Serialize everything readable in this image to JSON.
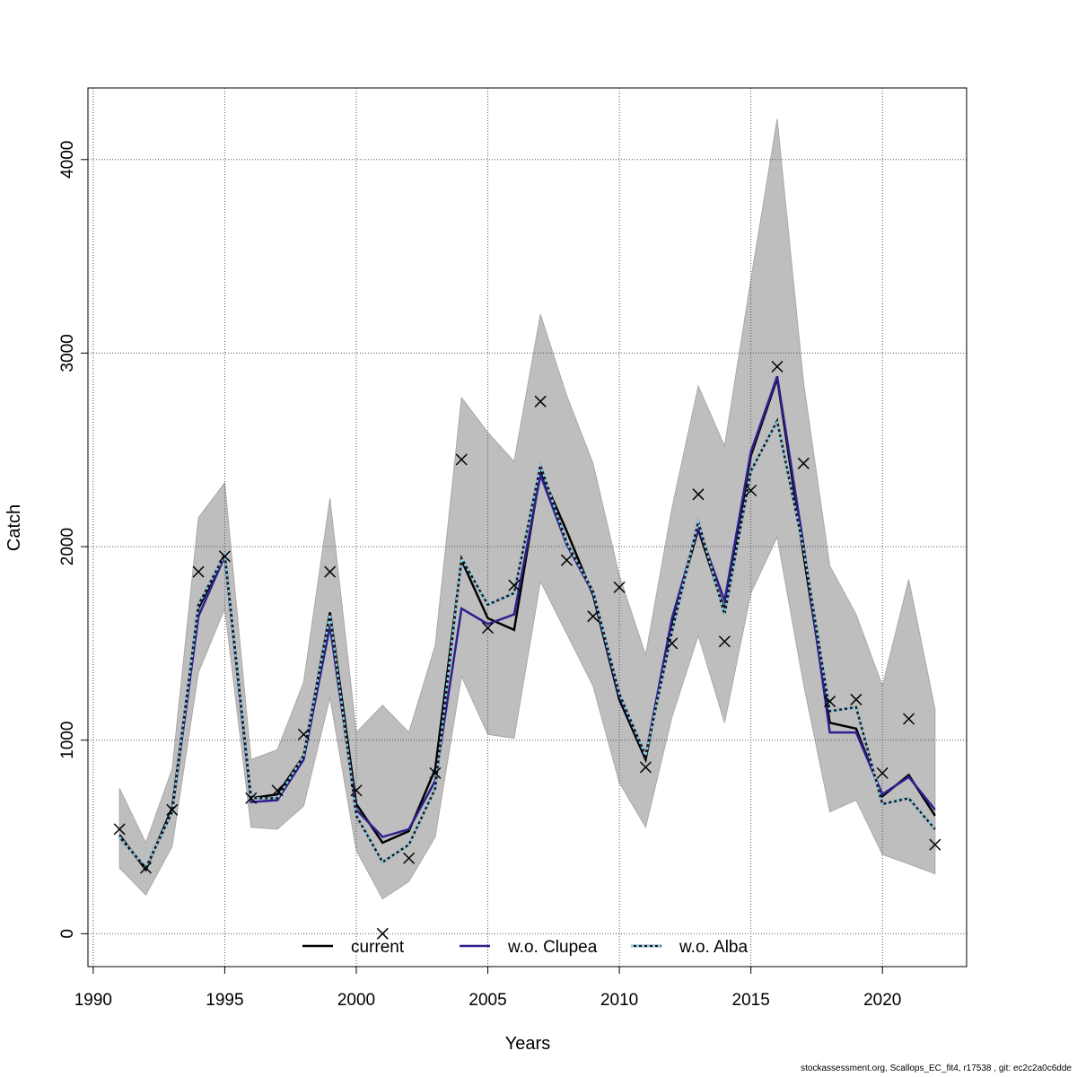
{
  "chart_data": {
    "type": "line",
    "xlabel": "Years",
    "ylabel": "Catch",
    "xlim": [
      1989.8,
      2023.2
    ],
    "ylim": [
      -170,
      4370
    ],
    "x_ticks": [
      1990,
      1995,
      2000,
      2005,
      2010,
      2015,
      2020
    ],
    "y_ticks": [
      0,
      1000,
      2000,
      3000,
      4000
    ],
    "grid": true,
    "legend_position": "bottom",
    "years": [
      1991,
      1992,
      1993,
      1994,
      1995,
      1996,
      1997,
      1998,
      1999,
      2000,
      2001,
      2002,
      2003,
      2004,
      2005,
      2006,
      2007,
      2008,
      2009,
      2010,
      2011,
      2012,
      2013,
      2014,
      2015,
      2016,
      2017,
      2018,
      2019,
      2020,
      2021,
      2022
    ],
    "band": {
      "upper": [
        750,
        470,
        850,
        2150,
        2330,
        900,
        950,
        1300,
        2250,
        1040,
        1180,
        1040,
        1490,
        2770,
        2590,
        2440,
        3200,
        2780,
        2430,
        1850,
        1440,
        2200,
        2830,
        2520,
        3380,
        4210,
        2850,
        1900,
        1650,
        1280,
        1830,
        1160
      ],
      "lower": [
        340,
        200,
        450,
        1350,
        1680,
        550,
        540,
        660,
        1220,
        430,
        180,
        270,
        500,
        1330,
        1030,
        1010,
        1820,
        1550,
        1280,
        780,
        550,
        1120,
        1540,
        1090,
        1760,
        2050,
        1290,
        630,
        690,
        410,
        360,
        310
      ],
      "color": "#bebebe"
    },
    "observed": {
      "marker": "x",
      "values": [
        540,
        340,
        640,
        1870,
        1950,
        700,
        740,
        1030,
        1870,
        740,
        0,
        390,
        830,
        2450,
        1580,
        1800,
        2750,
        1930,
        1640,
        1790,
        860,
        1500,
        2270,
        1510,
        2290,
        2930,
        2430,
        1200,
        1210,
        830,
        1110,
        460
      ]
    },
    "series": [
      {
        "name": "current",
        "color": "#000000",
        "style": "solid",
        "values": [
          510,
          330,
          650,
          1680,
          1960,
          700,
          720,
          920,
          1660,
          670,
          470,
          530,
          850,
          1930,
          1630,
          1570,
          2390,
          2080,
          1750,
          1210,
          900,
          1610,
          2090,
          1670,
          2470,
          2870,
          1960,
          1090,
          1060,
          710,
          820,
          610
        ]
      },
      {
        "name": "w.o. Clupea",
        "color": "#2e1f8f",
        "style": "solid",
        "values": [
          500,
          340,
          630,
          1640,
          1950,
          680,
          690,
          900,
          1590,
          640,
          500,
          540,
          790,
          1680,
          1600,
          1650,
          2370,
          2010,
          1760,
          1230,
          920,
          1630,
          2100,
          1720,
          2490,
          2880,
          2010,
          1040,
          1040,
          720,
          810,
          640
        ]
      },
      {
        "name": "w.o. Alba",
        "color": "#87ceeb",
        "style": "dotted",
        "values": [
          500,
          340,
          630,
          1700,
          1960,
          700,
          700,
          920,
          1650,
          610,
          370,
          460,
          750,
          1940,
          1700,
          1760,
          2420,
          2020,
          1770,
          1240,
          920,
          1560,
          2130,
          1650,
          2390,
          2650,
          1990,
          1150,
          1170,
          670,
          700,
          540
        ]
      }
    ]
  },
  "footer_text": "stockassessment.org, Scallops_EC_fit4, r17538 , git: ec2c2a0c6dde"
}
